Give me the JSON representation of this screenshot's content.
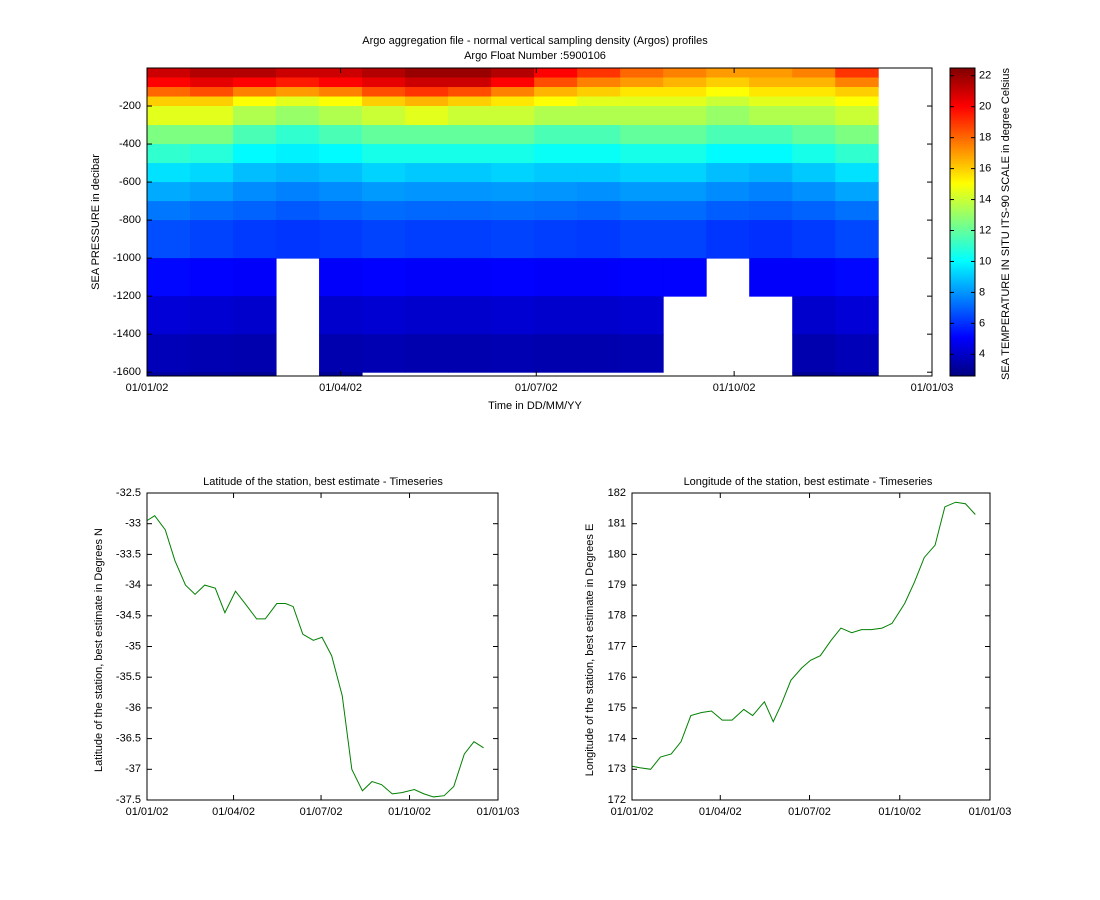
{
  "chart_data": [
    {
      "type": "heatmap",
      "title": "Argo aggregation file - normal vertical sampling density (Argos) profiles",
      "subtitle": "Argo Float Number :5900106",
      "xlabel": "Time in DD/MM/YY",
      "ylabel": "SEA PRESSURE in decibar",
      "colorbar_label": "SEA TEMPERATURE IN SITU ITS-90 SCALE in degree Celsius",
      "colormap": "jet",
      "x": [
        0,
        20,
        40,
        60,
        80,
        100,
        120,
        140,
        160,
        180,
        200,
        220,
        240,
        260,
        280,
        300,
        320
      ],
      "y": [
        0,
        -50,
        -100,
        -150,
        -200,
        -300,
        -400,
        -500,
        -600,
        -700,
        -800,
        -1000,
        -1200,
        -1400,
        -1600
      ],
      "z": [
        [
          21,
          21.5,
          21.5,
          21,
          21,
          21.5,
          22,
          22,
          21.5,
          20,
          19,
          18,
          17.5,
          17,
          17,
          17.5,
          19
        ],
        [
          20,
          20.5,
          20,
          19.5,
          20,
          20.5,
          21,
          21,
          20,
          18.5,
          17.5,
          17,
          16.5,
          16,
          16.5,
          16.5,
          17.5
        ],
        [
          18,
          18.5,
          17.5,
          17,
          17.5,
          18.5,
          19,
          18.5,
          17.5,
          16.5,
          16,
          15.5,
          15.5,
          15,
          15.5,
          15.5,
          16
        ],
        [
          16,
          16,
          15,
          14.5,
          15,
          16,
          16.5,
          16,
          15.5,
          15,
          14.5,
          14.5,
          14.5,
          14,
          14.5,
          14.5,
          15
        ],
        [
          14.5,
          14.5,
          13.5,
          13,
          13.5,
          14,
          14.5,
          14,
          14,
          13.5,
          13.5,
          13.5,
          13.5,
          13,
          13.5,
          13.5,
          14
        ],
        [
          12.5,
          12.5,
          11.5,
          11,
          11.5,
          12,
          12,
          12,
          12,
          11.5,
          11.5,
          12,
          12,
          11.5,
          11.5,
          12,
          12.5
        ],
        [
          11,
          10.8,
          10,
          9.8,
          10,
          10.5,
          10.5,
          10.5,
          10.5,
          10.2,
          10.2,
          10.5,
          10.5,
          10,
          10,
          10.5,
          11
        ],
        [
          9.5,
          9.3,
          8.8,
          8.6,
          8.8,
          9.2,
          9,
          9,
          9.2,
          9,
          9,
          9.2,
          9.2,
          8.8,
          8.6,
          9,
          9.5
        ],
        [
          8.4,
          8.2,
          7.8,
          7.6,
          7.8,
          8.1,
          8,
          8,
          8.1,
          8,
          7.9,
          8.1,
          8.1,
          7.8,
          7.6,
          7.9,
          8.3
        ],
        [
          7.4,
          7.2,
          7,
          6.8,
          7,
          7.2,
          7.1,
          7.1,
          7.2,
          7.1,
          7,
          7.2,
          7.2,
          6.9,
          6.8,
          7,
          7.3
        ],
        [
          6.6,
          6.4,
          6.2,
          6.1,
          6.2,
          6.4,
          6.3,
          6.3,
          6.4,
          6.3,
          6.2,
          6.4,
          6.4,
          6.1,
          6,
          6.2,
          6.5
        ],
        [
          5.2,
          5.1,
          5,
          null,
          5,
          5.1,
          5,
          5,
          5.1,
          5,
          5,
          5.1,
          5.1,
          null,
          5,
          5,
          5.2
        ],
        [
          4.3,
          4.2,
          4.1,
          null,
          4.1,
          4.2,
          4.1,
          4.1,
          4.2,
          4.1,
          4.1,
          4.2,
          null,
          null,
          null,
          4.1,
          4.3
        ],
        [
          3.7,
          3.6,
          3.5,
          null,
          3.5,
          3.6,
          3.5,
          3.5,
          3.6,
          3.5,
          3.5,
          3.6,
          null,
          null,
          null,
          3.5,
          3.7
        ],
        [
          3.2,
          3.1,
          3,
          null,
          3,
          null,
          null,
          null,
          null,
          null,
          null,
          null,
          null,
          null,
          null,
          3,
          3.2
        ]
      ],
      "xlim": [
        0,
        365
      ],
      "xticks": [
        {
          "value": 0,
          "label": "01/01/02"
        },
        {
          "value": 90,
          "label": "01/04/02"
        },
        {
          "value": 181,
          "label": "01/07/02"
        },
        {
          "value": 273,
          "label": "01/10/02"
        },
        {
          "value": 365,
          "label": "01/01/03"
        }
      ],
      "ylim": [
        -1620,
        0
      ],
      "yticks": [
        -1600,
        -1400,
        -1200,
        -1000,
        -800,
        -600,
        -400,
        -200
      ],
      "zlim": [
        2.6,
        22.5
      ],
      "zticks": [
        4,
        6,
        8,
        10,
        12,
        14,
        16,
        18,
        20,
        22
      ]
    },
    {
      "type": "line",
      "title": "Latitude of the station, best estimate - Timeseries",
      "ylabel": "Latitude of the station, best estimate in Degrees N",
      "x": [
        0,
        8,
        19,
        29,
        40,
        50,
        60,
        71,
        81,
        92,
        102,
        114,
        123,
        135,
        144,
        152,
        162,
        173,
        182,
        192,
        203,
        213,
        224,
        234,
        244,
        255,
        265,
        278,
        288,
        298,
        309,
        319,
        330,
        340,
        350
      ],
      "series": [
        {
          "color": "#008000",
          "values": [
            -32.95,
            -32.87,
            -33.1,
            -33.6,
            -34.0,
            -34.15,
            -34.0,
            -34.05,
            -34.45,
            -34.1,
            -34.3,
            -34.55,
            -34.55,
            -34.3,
            -34.3,
            -34.35,
            -34.8,
            -34.9,
            -34.85,
            -35.15,
            -35.8,
            -37.0,
            -37.35,
            -37.2,
            -37.25,
            -37.4,
            -37.38,
            -37.33,
            -37.4,
            -37.45,
            -37.43,
            -37.28,
            -36.75,
            -36.55,
            -36.65
          ]
        }
      ],
      "xlim": [
        0,
        365
      ],
      "xticks": [
        {
          "value": 0,
          "label": "01/01/02"
        },
        {
          "value": 90,
          "label": "01/04/02"
        },
        {
          "value": 181,
          "label": "01/07/02"
        },
        {
          "value": 273,
          "label": "01/10/02"
        },
        {
          "value": 365,
          "label": "01/01/03"
        }
      ],
      "ylim": [
        -37.5,
        -32.5
      ],
      "yticks": [
        -37.5,
        -37,
        -36.5,
        -36,
        -35.5,
        -35,
        -34.5,
        -34,
        -33.5,
        -33,
        -32.5
      ]
    },
    {
      "type": "line",
      "title": "Longitude of the station, best estimate - Timeseries",
      "ylabel": "Longitude of the station, best estimate in Degrees E",
      "x": [
        0,
        8,
        19,
        29,
        40,
        50,
        60,
        71,
        81,
        92,
        102,
        114,
        123,
        135,
        144,
        152,
        162,
        173,
        182,
        192,
        203,
        213,
        224,
        234,
        244,
        255,
        265,
        278,
        288,
        298,
        309,
        319,
        330,
        340,
        350
      ],
      "series": [
        {
          "color": "#008000",
          "values": [
            173.1,
            173.05,
            173.0,
            173.4,
            173.5,
            173.9,
            174.75,
            174.85,
            174.9,
            174.6,
            174.6,
            174.95,
            174.75,
            175.2,
            174.55,
            175.1,
            175.9,
            176.3,
            176.55,
            176.7,
            177.2,
            177.6,
            177.45,
            177.55,
            177.55,
            177.6,
            177.75,
            178.4,
            179.1,
            179.9,
            180.3,
            181.55,
            181.7,
            181.65,
            181.3
          ]
        }
      ],
      "xlim": [
        0,
        365
      ],
      "xticks": [
        {
          "value": 0,
          "label": "01/01/02"
        },
        {
          "value": 90,
          "label": "01/04/02"
        },
        {
          "value": 181,
          "label": "01/07/02"
        },
        {
          "value": 273,
          "label": "01/10/02"
        },
        {
          "value": 365,
          "label": "01/01/03"
        }
      ],
      "ylim": [
        172,
        182
      ],
      "yticks": [
        172,
        173,
        174,
        175,
        176,
        177,
        178,
        179,
        180,
        181,
        182
      ]
    }
  ]
}
